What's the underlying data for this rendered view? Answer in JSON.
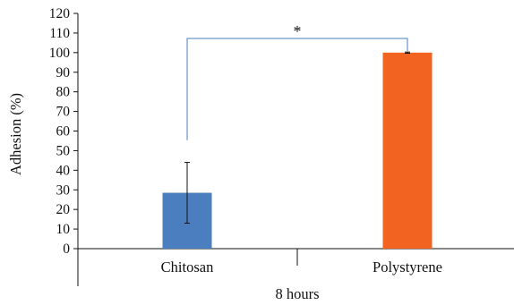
{
  "chart_data": {
    "type": "bar",
    "categories": [
      "Chitosan",
      "Polystyrene"
    ],
    "values": [
      28.5,
      100
    ],
    "errors": [
      15.5,
      0.3
    ],
    "colors": [
      "#4a7ebf",
      "#f26322"
    ],
    "xlabel": "8 hours",
    "ylabel": "Adhesion (%)",
    "ylim": [
      0,
      120
    ],
    "yticks": [
      "0",
      "10",
      "20",
      "30",
      "40",
      "50",
      "60",
      "70",
      "80",
      "90",
      "100",
      "110",
      "120"
    ],
    "significance": {
      "from": "Chitosan",
      "to": "Polystyrene",
      "label": "*",
      "line_color": "#4a7ebf"
    },
    "grid": false,
    "legend": "none"
  }
}
